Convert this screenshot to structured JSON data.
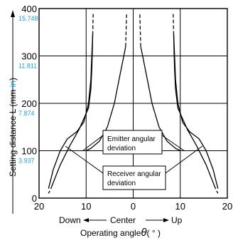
{
  "chart_data": {
    "type": "line",
    "ylabel_prefix": "Setting distance L (mm ",
    "ylabel_unit": "in",
    "ylabel_suffix": ")",
    "xlabel_direction": {
      "left": "Down",
      "center": "Center",
      "right": "Up"
    },
    "xlabel": "Operating angle",
    "xlabel_symbol": "θ",
    "xlabel_unit": "( ° )",
    "xlim": [
      -20,
      20
    ],
    "ylim": [
      0,
      400
    ],
    "x_ticks": [
      {
        "value": -20,
        "label": "20"
      },
      {
        "value": -10,
        "label": "10"
      },
      {
        "value": 0,
        "label": "0"
      },
      {
        "value": 10,
        "label": "10"
      },
      {
        "value": 20,
        "label": "20"
      }
    ],
    "y_ticks": [
      {
        "value": 0,
        "label": "0",
        "inch": ""
      },
      {
        "value": 100,
        "label": "100",
        "inch": "3.937"
      },
      {
        "value": 200,
        "label": "200",
        "inch": "7.874"
      },
      {
        "value": 300,
        "label": "300",
        "inch": "11.811"
      },
      {
        "value": 400,
        "label": "400",
        "inch": "15.748"
      }
    ],
    "annotations": {
      "emitter": [
        "Emitter angular",
        "deviation"
      ],
      "receiver": [
        "Receiver angular",
        "deviation"
      ]
    },
    "series": [
      {
        "points": [
          [
            -18,
            20
          ],
          [
            -17,
            60
          ],
          [
            -15.5,
            100
          ],
          [
            -14,
            125
          ],
          [
            -12,
            140
          ],
          [
            -10.5,
            160
          ],
          [
            -9.5,
            200
          ],
          [
            -9,
            250
          ],
          [
            -8.8,
            300
          ],
          [
            -8.6,
            345
          ]
        ],
        "dashed_above": [
          [
            -8.6,
            345
          ],
          [
            -8.5,
            390
          ]
        ]
      },
      {
        "points": [
          [
            -17.5,
            20
          ],
          [
            -15.5,
            70
          ],
          [
            -13.5,
            110
          ],
          [
            -11.5,
            145
          ],
          [
            -9.5,
            190
          ],
          [
            -9,
            230
          ],
          [
            -8.8,
            270
          ],
          [
            -8.7,
            305
          ],
          [
            -8.6,
            345
          ]
        ],
        "dashed_below": [
          [
            -18,
            10
          ],
          [
            -17.5,
            20
          ]
        ]
      },
      {
        "points": [
          [
            18,
            20
          ],
          [
            17,
            60
          ],
          [
            15.5,
            100
          ],
          [
            14,
            125
          ],
          [
            12,
            140
          ],
          [
            10.5,
            160
          ],
          [
            9.5,
            200
          ],
          [
            9,
            250
          ],
          [
            8.8,
            300
          ],
          [
            8.6,
            345
          ]
        ],
        "dashed_above": [
          [
            8.6,
            345
          ],
          [
            8.5,
            390
          ]
        ]
      },
      {
        "points": [
          [
            17.5,
            20
          ],
          [
            15.5,
            70
          ],
          [
            13.5,
            110
          ],
          [
            11.5,
            145
          ],
          [
            9.5,
            190
          ],
          [
            9,
            230
          ],
          [
            8.8,
            270
          ],
          [
            8.7,
            305
          ],
          [
            8.6,
            345
          ]
        ],
        "dashed_below": [
          [
            18,
            10
          ],
          [
            17.5,
            20
          ]
        ]
      },
      {
        "points": [
          [
            -1.6,
            320
          ],
          [
            -2,
            300
          ],
          [
            -2.8,
            260
          ],
          [
            -4,
            200
          ],
          [
            -5.5,
            150
          ],
          [
            -7.2,
            120
          ],
          [
            -9,
            105
          ],
          [
            -10,
            100
          ]
        ],
        "dashed_above": [
          [
            -1.6,
            320
          ],
          [
            -1.4,
            390
          ]
        ]
      },
      {
        "points": [
          [
            1.6,
            320
          ],
          [
            2,
            300
          ],
          [
            2.8,
            260
          ],
          [
            4,
            200
          ],
          [
            5.5,
            150
          ],
          [
            7.2,
            120
          ],
          [
            9,
            105
          ],
          [
            10,
            100
          ]
        ],
        "dashed_above": [
          [
            1.6,
            320
          ],
          [
            1.4,
            390
          ]
        ]
      }
    ]
  }
}
